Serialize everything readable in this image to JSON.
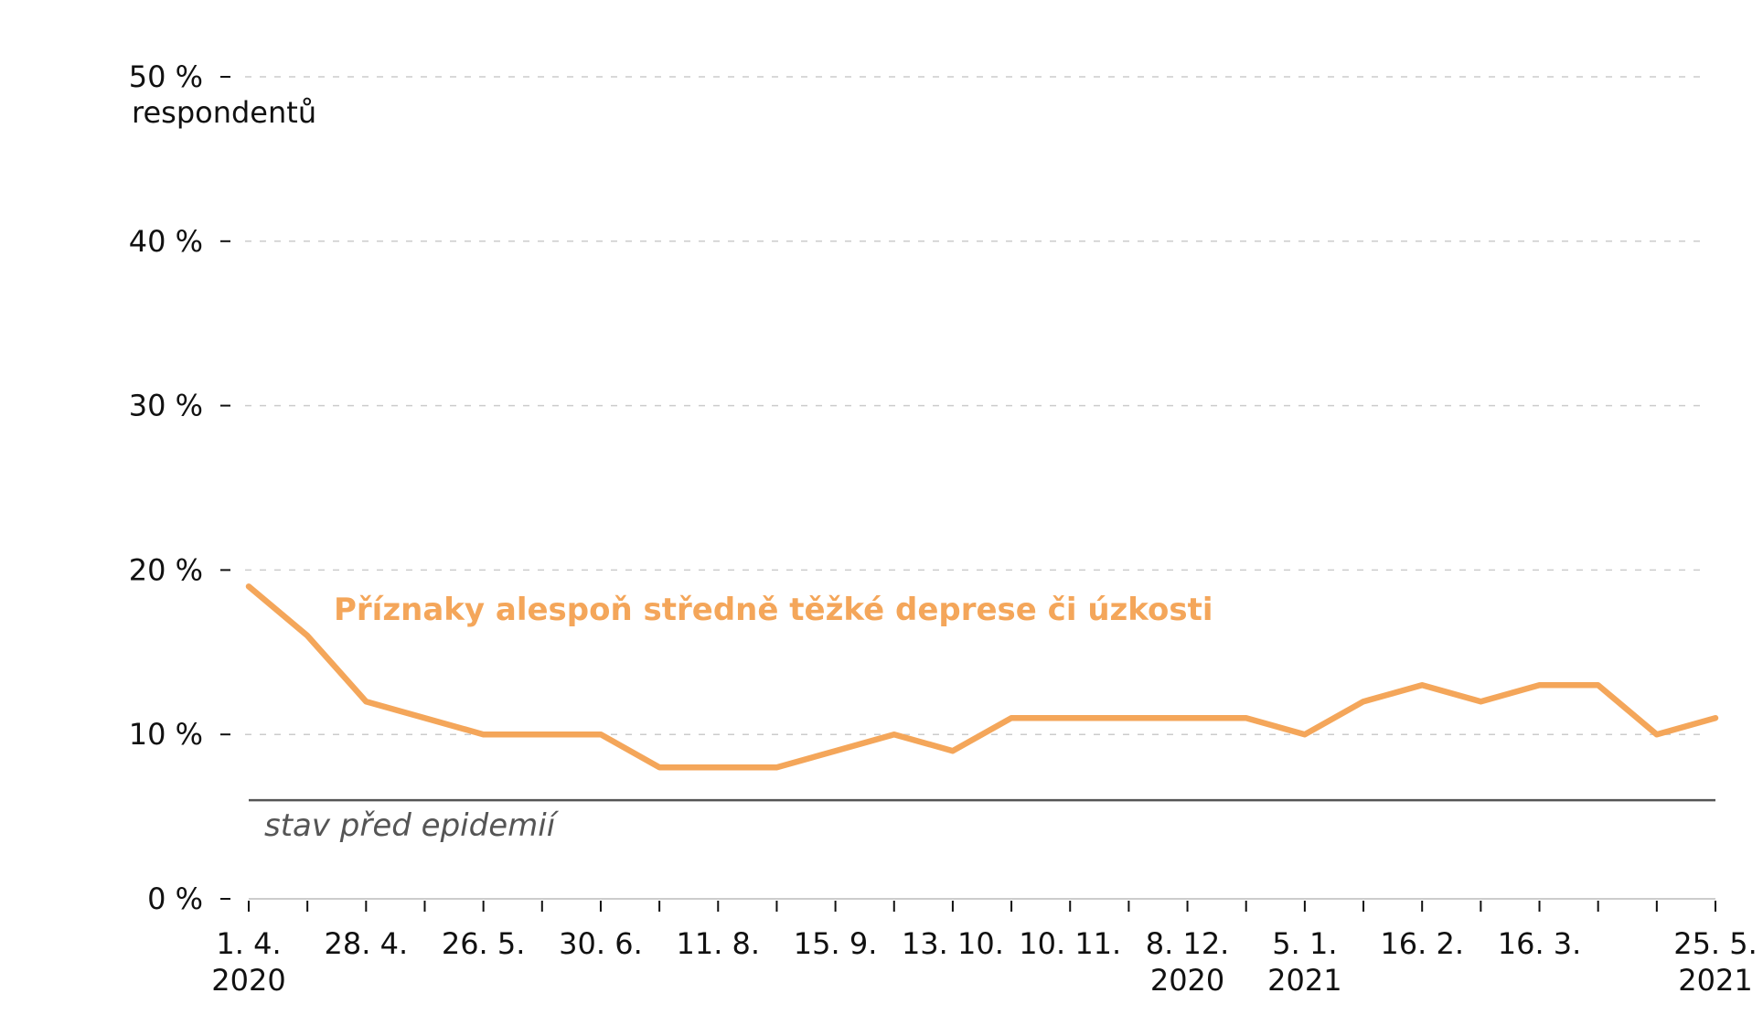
{
  "chart_data": {
    "type": "line",
    "yunit_label": "respondentů",
    "ylim": [
      0,
      50
    ],
    "yticks": [
      {
        "value": 0,
        "label": "0 %"
      },
      {
        "value": 10,
        "label": "10 %"
      },
      {
        "value": 20,
        "label": "20 %"
      },
      {
        "value": 30,
        "label": "30 %"
      },
      {
        "value": 40,
        "label": "40 %"
      },
      {
        "value": 50,
        "label": "50 %"
      }
    ],
    "grid": "horizontal-dashed",
    "x_tick_count": 26,
    "x_labels": [
      {
        "index": 0,
        "lines": [
          "1. 4.",
          "2020"
        ]
      },
      {
        "index": 2,
        "lines": [
          "28. 4."
        ]
      },
      {
        "index": 4,
        "lines": [
          "26. 5."
        ]
      },
      {
        "index": 6,
        "lines": [
          "30. 6."
        ]
      },
      {
        "index": 8,
        "lines": [
          "11. 8."
        ]
      },
      {
        "index": 10,
        "lines": [
          "15. 9."
        ]
      },
      {
        "index": 12,
        "lines": [
          "13. 10."
        ]
      },
      {
        "index": 14,
        "lines": [
          "10. 11."
        ]
      },
      {
        "index": 16,
        "lines": [
          "8. 12.",
          "2020"
        ]
      },
      {
        "index": 18,
        "lines": [
          "5. 1.",
          "2021"
        ]
      },
      {
        "index": 20,
        "lines": [
          "16. 2."
        ]
      },
      {
        "index": 22,
        "lines": [
          "16. 3."
        ]
      },
      {
        "index": 25,
        "lines": [
          "25. 5.",
          "2021"
        ]
      }
    ],
    "series": [
      {
        "name": "Příznaky alespoň středně těžké deprese či úzkosti",
        "color": "#f4a65a",
        "values": [
          19,
          16,
          12,
          11,
          10,
          10,
          10,
          8,
          8,
          8,
          9,
          10,
          9,
          11,
          11,
          11,
          11,
          11,
          10,
          12,
          13,
          12,
          13,
          13,
          10,
          11
        ]
      }
    ],
    "baseline": {
      "value": 6,
      "label": "stav před epidemií",
      "color": "#555555"
    }
  }
}
